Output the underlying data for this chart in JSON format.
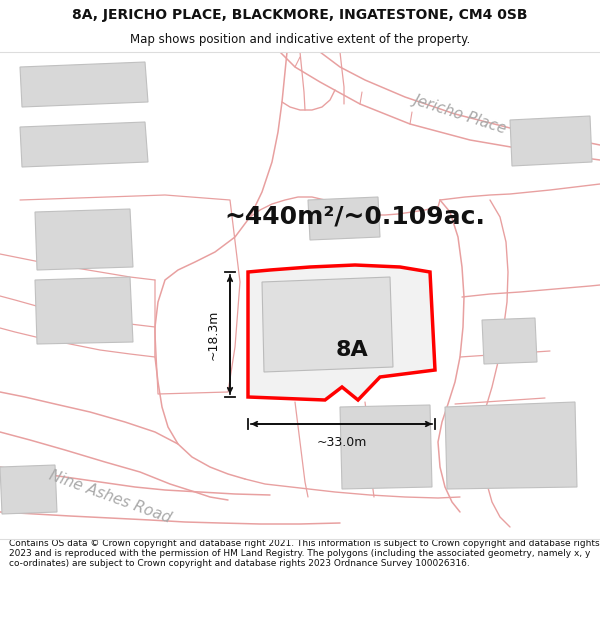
{
  "title_line1": "8A, JERICHO PLACE, BLACKMORE, INGATESTONE, CM4 0SB",
  "title_line2": "Map shows position and indicative extent of the property.",
  "area_text": "~440m²/~0.109ac.",
  "label_8A": "8A",
  "dim_height": "~18.3m",
  "dim_width": "~33.0m",
  "road_jericho": "Jericho Place",
  "road_nine_ashes": "Nine Ashes Road",
  "footer_text": "Contains OS data © Crown copyright and database right 2021. This information is subject to Crown copyright and database rights 2023 and is reproduced with the permission of HM Land Registry. The polygons (including the associated geometry, namely x, y co-ordinates) are subject to Crown copyright and database rights 2023 Ordnance Survey 100026316.",
  "bg_color": "#ffffff",
  "map_bg": "#ffffff",
  "building_fill": "#d8d8d8",
  "building_edge": "#c0c0c0",
  "plot_stroke": "#ff0000",
  "plot_fill": "#f2f2f2",
  "inner_fill": "#e0e0e0",
  "dim_color": "#111111",
  "road_color": "#e8a0a0",
  "road_label_color": "#aaaaaa",
  "title_fontsize": 10,
  "subtitle_fontsize": 8.5,
  "area_fontsize": 18,
  "label_fontsize": 16,
  "road_fontsize": 11,
  "dim_fontsize": 9,
  "footer_fontsize": 6.5
}
